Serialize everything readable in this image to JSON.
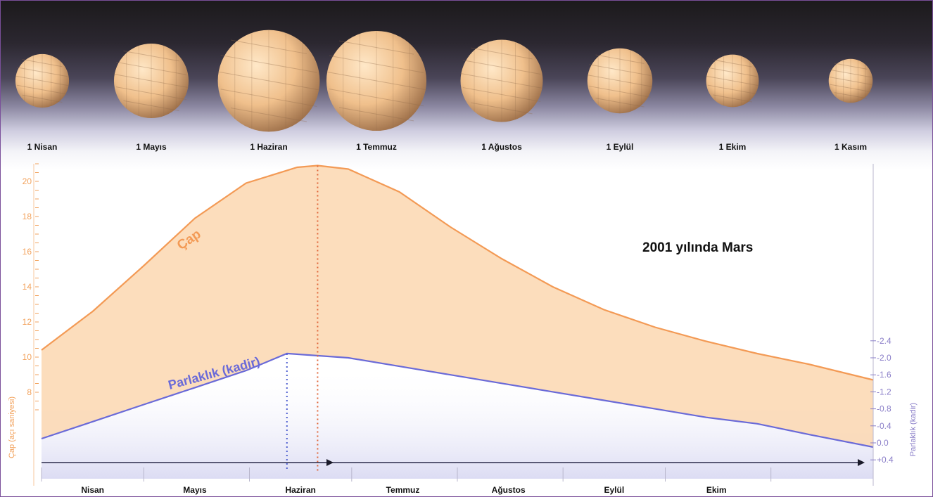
{
  "chart_data": {
    "type": "line",
    "title": "2001 yılında Mars",
    "planet_dates": [
      "1 Nisan",
      "1 Mayıs",
      "1 Haziran",
      "1 Temmuz",
      "1 Ağustos",
      "1 Eylül",
      "1 Ekim",
      "1 Kasım"
    ],
    "planet_diameters": [
      11.2,
      15.6,
      21.3,
      20.9,
      17.2,
      13.6,
      11.0,
      9.2
    ],
    "x_ticks": [
      "Nisan",
      "Mayıs",
      "Haziran",
      "Temmuz",
      "Ağustos",
      "Eylül",
      "Ekim"
    ],
    "ylabel_left": "Çap (açı saniyesi)",
    "ylabel_right": "Parlaklık (kadir)",
    "y_left_ticks": [
      "20",
      "18",
      "16",
      "14",
      "12",
      "10",
      "8"
    ],
    "y_left_values": [
      20,
      18,
      16,
      14,
      12,
      10,
      8
    ],
    "y_right_ticks": [
      "-2.4",
      "-2.0",
      "-1.6",
      "-1.2",
      "-0.8",
      "-0.4",
      "0.0",
      "+0.4"
    ],
    "y_right_values": [
      -2.4,
      -2.0,
      -1.6,
      -1.2,
      -0.8,
      -0.4,
      0.0,
      0.4
    ],
    "series": [
      {
        "name": "Çap",
        "color": "#f39a55",
        "axis": "left",
        "x_days": [
          0,
          15,
          30,
          45,
          60,
          75,
          81,
          90,
          105,
          120,
          135,
          150,
          165,
          180,
          195,
          210,
          225,
          244
        ],
        "values": [
          10.4,
          12.6,
          15.2,
          17.9,
          19.9,
          20.8,
          20.9,
          20.7,
          19.4,
          17.4,
          15.6,
          14.0,
          12.7,
          11.7,
          10.9,
          10.2,
          9.6,
          8.7
        ]
      },
      {
        "name": "Parlaklık (kadir)",
        "color": "#6a6ad8",
        "axis": "right",
        "x_days": [
          0,
          15,
          30,
          45,
          60,
          72,
          90,
          105,
          120,
          135,
          150,
          165,
          180,
          195,
          210,
          225,
          244
        ],
        "values": [
          -0.1,
          -0.5,
          -0.9,
          -1.3,
          -1.7,
          -2.1,
          -2.0,
          -1.8,
          -1.6,
          -1.4,
          -1.2,
          -1.0,
          -0.8,
          -0.6,
          -0.45,
          -0.2,
          0.1
        ]
      }
    ],
    "colors": {
      "fill": "#fbd7b0",
      "cap": "#f39a55",
      "brightness": "#6a6ad8",
      "axis_left": "#f2a25c",
      "axis_right": "#8a7ec8"
    }
  }
}
